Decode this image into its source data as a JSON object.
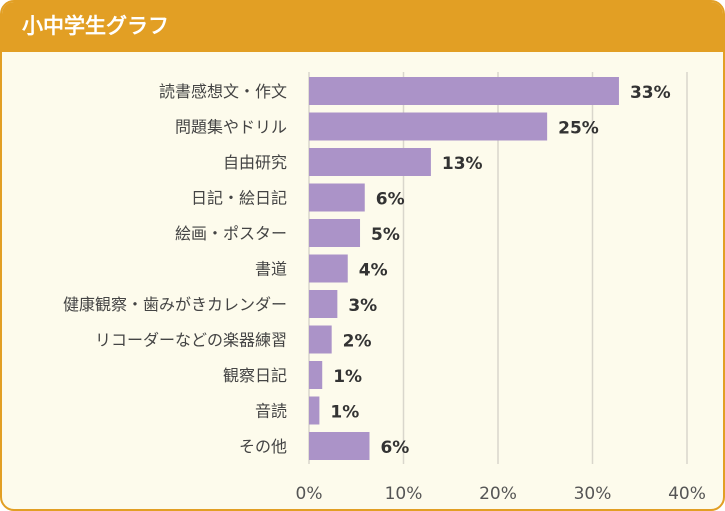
{
  "header": {
    "title": "小中学生グラフ"
  },
  "colors": {
    "header": "#e29f24",
    "background": "#fdfbec",
    "bar": "#ab93c8",
    "grid": "#d9d6cc"
  },
  "chart_data": {
    "type": "bar",
    "orientation": "horizontal",
    "title": "小中学生グラフ",
    "xlabel": "",
    "ylabel": "",
    "xlim": [
      0,
      40
    ],
    "grid": true,
    "categories": [
      "読書感想文・作文",
      "問題集やドリル",
      "自由研究",
      "日記・絵日記",
      "絵画・ポスター",
      "書道",
      "健康観察・歯みがきカレンダー",
      "リコーダーなどの楽器練習",
      "観察日記",
      "音読",
      "その他"
    ],
    "values": [
      33,
      25,
      13,
      6,
      5,
      4,
      3,
      2,
      1,
      1,
      6
    ],
    "bar_values_exact": [
      32.8,
      25.2,
      12.9,
      5.9,
      5.4,
      4.1,
      3.0,
      2.4,
      1.4,
      1.1,
      6.4
    ],
    "value_labels": [
      "33%",
      "25%",
      "13%",
      "6%",
      "5%",
      "4%",
      "3%",
      "2%",
      "1%",
      "1%",
      "6%"
    ],
    "x_ticks": [
      0,
      10,
      20,
      30,
      40
    ],
    "x_tick_labels": [
      "0%",
      "10%",
      "20%",
      "30%",
      "40%"
    ]
  }
}
